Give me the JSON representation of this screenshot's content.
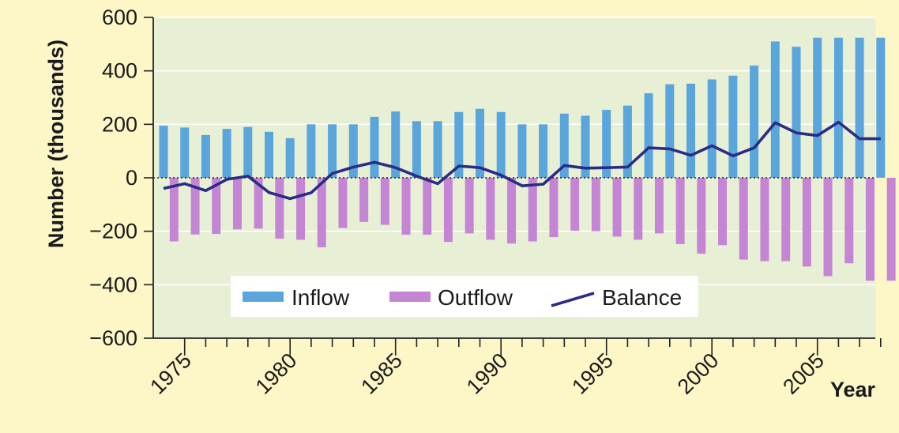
{
  "chart_data": {
    "type": "bar",
    "title": "",
    "xlabel": "Year",
    "ylabel": "Number (thousands)",
    "ylim": [
      -600,
      600
    ],
    "yticks": [
      600,
      400,
      200,
      0,
      -200,
      -400,
      -600
    ],
    "ytick_labels": [
      "600",
      "400",
      "200",
      "0",
      "−200",
      "−400",
      "−600"
    ],
    "xtick_labels": [
      "1975",
      "1980",
      "1985",
      "1990",
      "1995",
      "2000",
      "2005"
    ],
    "x": [
      1974,
      1975,
      1976,
      1977,
      1978,
      1979,
      1980,
      1981,
      1982,
      1983,
      1984,
      1985,
      1986,
      1987,
      1988,
      1989,
      1990,
      1991,
      1992,
      1993,
      1994,
      1995,
      1996,
      1997,
      1998,
      1999,
      2000,
      2001,
      2002,
      2003,
      2004,
      2005,
      2006,
      2007,
      2008
    ],
    "series": [
      {
        "name": "Inflow",
        "type": "bar",
        "color": "#5aa5dc",
        "values": [
          195,
          188,
          160,
          183,
          190,
          172,
          148,
          200,
          200,
          200,
          228,
          248,
          212,
          212,
          246,
          258,
          246,
          200,
          200,
          240,
          232,
          254,
          270,
          316,
          350,
          352,
          368,
          382,
          420,
          510,
          490,
          524,
          524,
          524,
          524
        ]
      },
      {
        "name": "Outflow",
        "type": "bar",
        "color": "#c486d4",
        "values": [
          -238,
          -212,
          -210,
          -193,
          -190,
          -228,
          -232,
          -260,
          -188,
          -165,
          -176,
          -213,
          -213,
          -240,
          -208,
          -232,
          -246,
          -238,
          -222,
          -198,
          -200,
          -220,
          -232,
          -208,
          -248,
          -284,
          -252,
          -306,
          -312,
          -312,
          -332,
          -368,
          -320,
          -385,
          -385
        ]
      },
      {
        "name": "Balance",
        "type": "line",
        "color": "#2b2c85",
        "values": [
          -40,
          -22,
          -48,
          -6,
          6,
          -55,
          -78,
          -56,
          16,
          40,
          58,
          38,
          6,
          -22,
          44,
          38,
          10,
          -30,
          -24,
          46,
          36,
          38,
          40,
          112,
          108,
          84,
          120,
          82,
          112,
          206,
          168,
          158,
          208,
          146,
          146
        ]
      }
    ],
    "legend": {
      "position": "bottom-center",
      "items": [
        "Inflow",
        "Outflow",
        "Balance"
      ]
    },
    "grid": true,
    "zero_line": "dotted",
    "plot_background": "#e7efd5",
    "page_background": "#fdf6c6"
  }
}
